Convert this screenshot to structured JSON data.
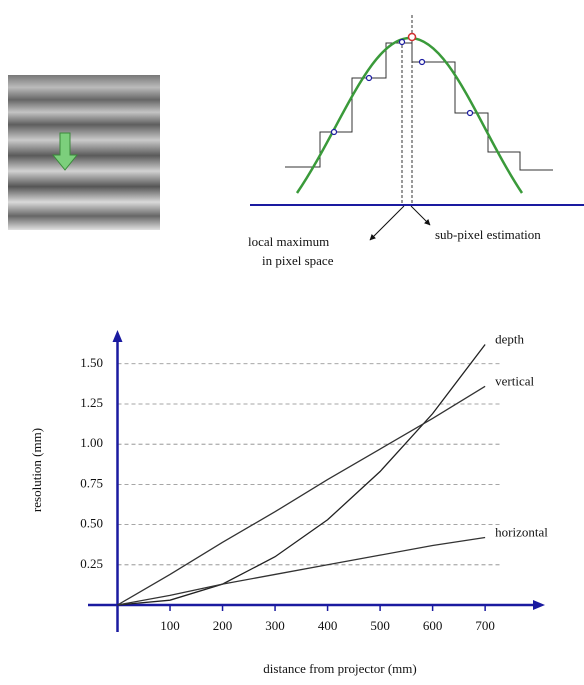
{
  "diagram": {
    "labels": [
      "local maximum",
      "in pixel space",
      "sub-pixel estimation"
    ]
  },
  "chart_data": {
    "type": "line",
    "xlabel": "distance from projector (mm)",
    "ylabel": "resolution (mm)",
    "x": [
      0,
      100,
      200,
      300,
      400,
      500,
      600,
      700
    ],
    "series": [
      {
        "name": "depth",
        "color": "#222222",
        "values": [
          0,
          0.03,
          0.13,
          0.3,
          0.53,
          0.83,
          1.19,
          1.62
        ]
      },
      {
        "name": "vertical",
        "color": "#333333",
        "values": [
          0,
          0.19,
          0.39,
          0.58,
          0.78,
          0.97,
          1.16,
          1.36
        ]
      },
      {
        "name": "horizontal",
        "color": "#333333",
        "values": [
          0,
          0.06,
          0.13,
          0.19,
          0.25,
          0.31,
          0.37,
          0.42
        ]
      }
    ],
    "xlim": [
      0,
      814
    ],
    "ylim": [
      0,
      1.71
    ],
    "xticks": [
      100,
      200,
      300,
      400,
      500,
      600,
      700
    ],
    "yticks": [
      0.25,
      {
        "value": 0.5,
        "label": "0.50"
      },
      0.75,
      {
        "value": 1,
        "label": "1.00"
      },
      1.25,
      {
        "value": 1.5,
        "label": "1.50"
      }
    ],
    "grid": true,
    "axis_color": "#1a1aa0"
  }
}
